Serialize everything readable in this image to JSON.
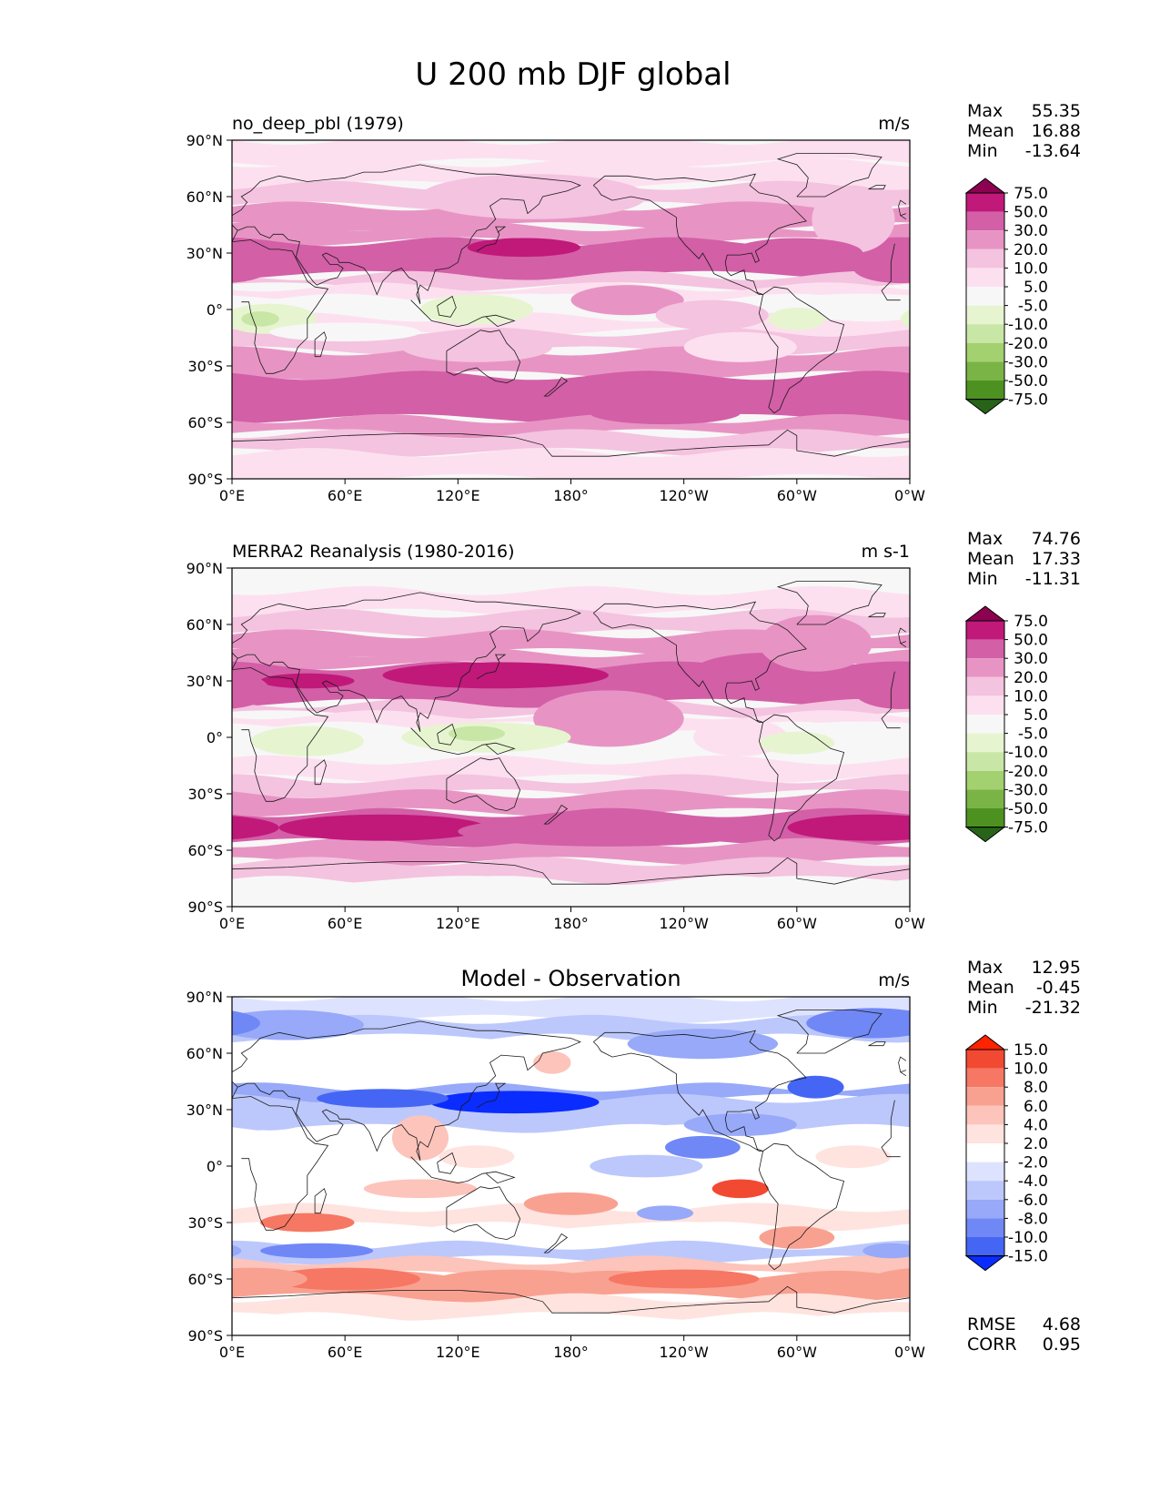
{
  "figure_title": "U 200 mb DJF global",
  "colors": {
    "pos_levels": [
      "#f7f7f7",
      "#fde0ef",
      "#f4c3df",
      "#e794c4",
      "#d35fa7",
      "#c0197a",
      "#8c0251"
    ],
    "neg_levels": [
      "#f7f7f7",
      "#e6f5d0",
      "#c8e6a5",
      "#a3d16f",
      "#7bb446",
      "#4d9221",
      "#276419"
    ],
    "diff_pos": [
      "#ffffff",
      "#fee3df",
      "#fcc4bb",
      "#f9a191",
      "#f67763",
      "#f24a32",
      "#ff2400"
    ],
    "diff_neg": [
      "#ffffff",
      "#dde3ff",
      "#bcc8fc",
      "#97a9f8",
      "#7088f5",
      "#4566f4",
      "#0a2cff"
    ],
    "coast": "#1a1a1a"
  },
  "chart_data": [
    {
      "type": "heatmap",
      "name": "test",
      "title_left": "no_deep_pbl (1979)",
      "title_center": "",
      "units": "m/s",
      "stats": [
        {
          "label": "Max",
          "value": "55.35"
        },
        {
          "label": "Mean",
          "value": "16.88"
        },
        {
          "label": "Min",
          "value": "-13.64"
        }
      ],
      "colorbar_levels": [
        "75.0",
        "50.0",
        "30.0",
        "20.0",
        "10.0",
        "5.0",
        "-5.0",
        "-10.0",
        "-20.0",
        "-30.0",
        "-50.0",
        "-75.0"
      ],
      "xticks": [
        "0°E",
        "60°E",
        "120°E",
        "180°",
        "120°W",
        "60°W",
        "0°W"
      ],
      "yticks": [
        "90°N",
        "60°N",
        "30°N",
        "0°",
        "30°S",
        "60°S",
        "90°S"
      ],
      "xlim": [
        0,
        360
      ],
      "ylim": [
        -90,
        90
      ],
      "extra_stats": []
    },
    {
      "type": "heatmap",
      "name": "reference",
      "title_left": "MERRA2 Reanalysis (1980-2016)",
      "title_center": "",
      "units": "m s-1",
      "stats": [
        {
          "label": "Max",
          "value": "74.76"
        },
        {
          "label": "Mean",
          "value": "17.33"
        },
        {
          "label": "Min",
          "value": "-11.31"
        }
      ],
      "colorbar_levels": [
        "75.0",
        "50.0",
        "30.0",
        "20.0",
        "10.0",
        "5.0",
        "-5.0",
        "-10.0",
        "-20.0",
        "-30.0",
        "-50.0",
        "-75.0"
      ],
      "xticks": [
        "0°E",
        "60°E",
        "120°E",
        "180°",
        "120°W",
        "60°W",
        "0°W"
      ],
      "yticks": [
        "90°N",
        "60°N",
        "30°N",
        "0°",
        "30°S",
        "60°S",
        "90°S"
      ],
      "xlim": [
        0,
        360
      ],
      "ylim": [
        -90,
        90
      ],
      "extra_stats": []
    },
    {
      "type": "heatmap",
      "name": "difference",
      "title_left": "",
      "title_center": "Model - Observation",
      "units": "m/s",
      "stats": [
        {
          "label": "Max",
          "value": "12.95"
        },
        {
          "label": "Mean",
          "value": "-0.45"
        },
        {
          "label": "Min",
          "value": "-21.32"
        }
      ],
      "colorbar_levels": [
        "15.0",
        "10.0",
        "8.0",
        "6.0",
        "4.0",
        "2.0",
        "-2.0",
        "-4.0",
        "-6.0",
        "-8.0",
        "-10.0",
        "-15.0"
      ],
      "xticks": [
        "0°E",
        "60°E",
        "120°E",
        "180°",
        "120°W",
        "60°W",
        "0°W"
      ],
      "yticks": [
        "90°N",
        "60°N",
        "30°N",
        "0°",
        "30°S",
        "60°S",
        "90°S"
      ],
      "xlim": [
        0,
        360
      ],
      "ylim": [
        -90,
        90
      ],
      "extra_stats": [
        {
          "label": "RMSE",
          "value": "4.68"
        },
        {
          "label": "CORR",
          "value": "0.95"
        }
      ]
    }
  ]
}
